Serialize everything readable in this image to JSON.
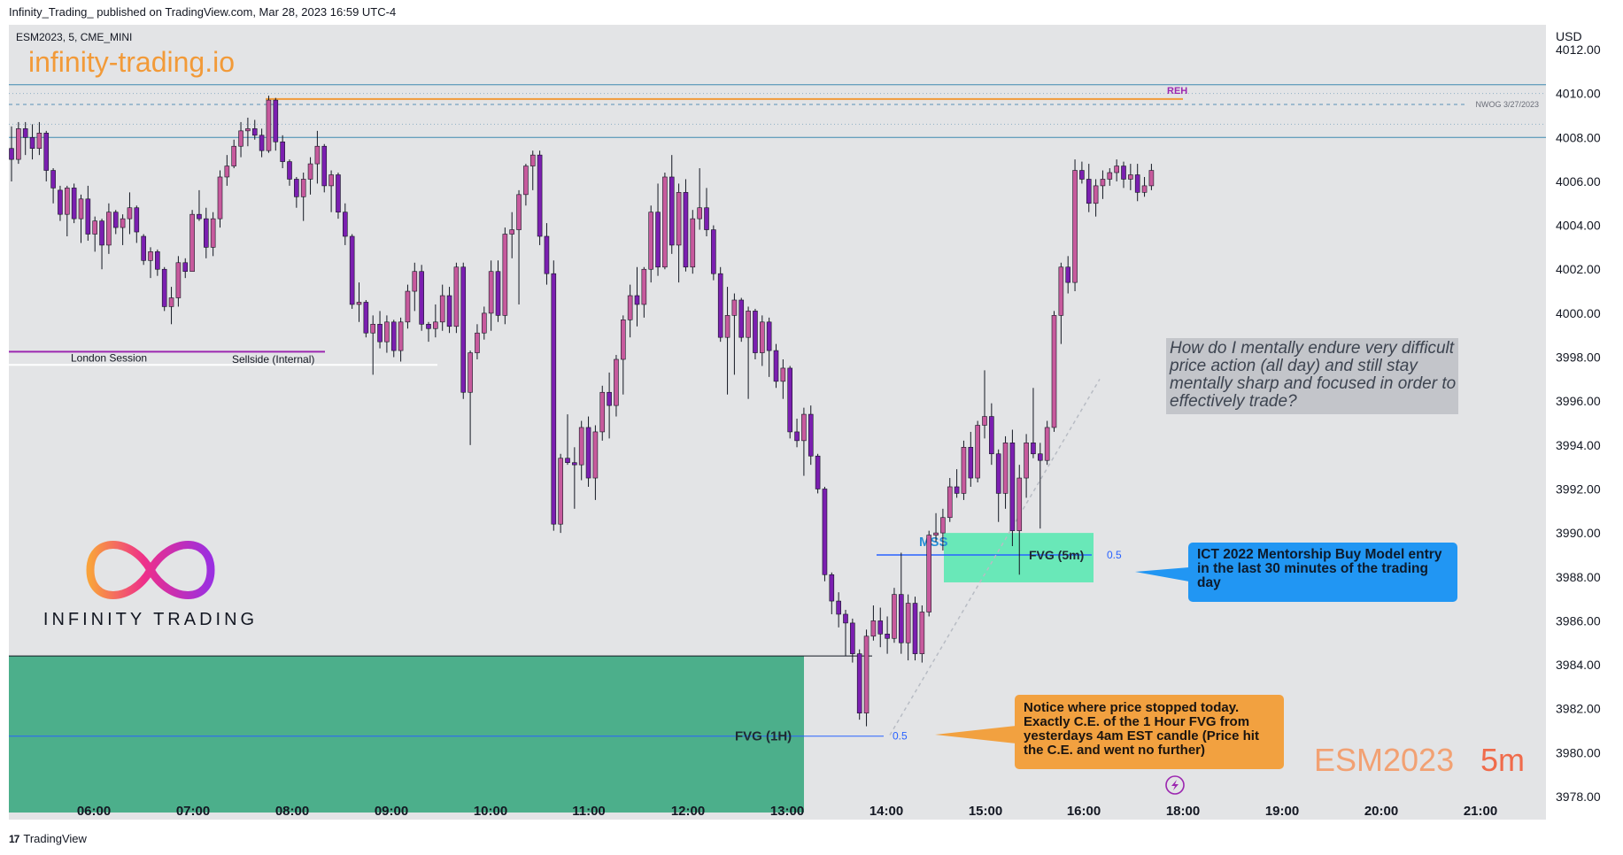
{
  "header": {
    "publish_line": "Infinity_Trading_ published on TradingView.com, Mar 28, 2023 16:59 UTC-4"
  },
  "footer": {
    "brand": "TradingView"
  },
  "chart": {
    "symbol_line": "ESM2023, 5, CME_MINI",
    "currency": "USD",
    "brand_url": "infinity-trading.io",
    "logo_text": "INFINITY TRADING",
    "watermark_symbol": "ESM2023",
    "watermark_interval": "5m"
  },
  "colors": {
    "background": "#e3e4e6",
    "bull_candle": "#c75a9d",
    "bear_candle": "#7b1fb0",
    "fvg_1h": "#4caf8b",
    "fvg_5m": "#69e8b8",
    "accent_orange": "#f29a38",
    "callout_blue": "#2196f3",
    "callout_orange": "#f2a140"
  },
  "annotations": {
    "reh": "REH",
    "nwog": "NWOG 3/27/2023",
    "london_session": "London Session",
    "sellside": "Sellside (Internal)",
    "mss": "MSS",
    "fvg_5m": "FVG (5m)",
    "fvg_5m_ce": "0.5",
    "fvg_1h": "FVG (1H)",
    "fvg_1h_ce": "0.5",
    "question": "How do I mentally endure very difficult price action (all day) and still stay mentally sharp and focused in order to effectively trade?",
    "ict_note": "ICT 2022 Mentorship Buy Model entry in the last 30 minutes of the trading day",
    "notice_note": "Notice where price stopped today. Exactly C.E. of the 1 Hour FVG from yesterdays 4am EST candle (Price hit the C.E. and went no further)"
  },
  "chart_data": {
    "type": "candlestick",
    "symbol": "ESM2023",
    "interval": "5m",
    "ylabel": "USD",
    "ylim": [
      3978,
      4012
    ],
    "y_ticks": [
      "3978.00",
      "3980.00",
      "3982.00",
      "3984.00",
      "3986.00",
      "3988.00",
      "3990.00",
      "3992.00",
      "3994.00",
      "3996.00",
      "3998.00",
      "4000.00",
      "4002.00",
      "4004.00",
      "4006.00",
      "4008.00",
      "4010.00",
      "4012.00"
    ],
    "x_ticks": [
      "06:00",
      "07:00",
      "08:00",
      "09:00",
      "10:00",
      "11:00",
      "12:00",
      "13:00",
      "14:00",
      "15:00",
      "16:00",
      "18:00",
      "19:00",
      "20:00",
      "21:00"
    ],
    "levels": {
      "reh": 4009.75,
      "nwog_top": 4010.4,
      "nwog_mid": 4009.5,
      "nwog_bottom": 4008,
      "sellside": 3997.75,
      "fvg_5m_top": 3990,
      "fvg_5m_bottom": 3987.75,
      "fvg_5m_ce": 3989,
      "fvg_1h_top": 3984.4,
      "fvg_1h_ce": 3980.75
    },
    "candles": [
      [
        4007.5,
        4008.5,
        4006,
        4007
      ],
      [
        4007,
        4008.7,
        4006.8,
        4008.4
      ],
      [
        4008.4,
        4008.7,
        4007.2,
        4008
      ],
      [
        4008,
        4008.6,
        4007,
        4007.5
      ],
      [
        4007.5,
        4008.7,
        4007.2,
        4008.2
      ],
      [
        4008.2,
        4008.3,
        4006,
        4006.5
      ],
      [
        4006.5,
        4006.6,
        4005,
        4005.7
      ],
      [
        4005.6,
        4005.8,
        4004.2,
        4004.5
      ],
      [
        4004.5,
        4005.8,
        4003.5,
        4005.7
      ],
      [
        4005.7,
        4005.9,
        4004.1,
        4004.3
      ],
      [
        4004.3,
        4005.4,
        4003.2,
        4005.2
      ],
      [
        4005.2,
        4005.8,
        4003.3,
        4003.6
      ],
      [
        4003.6,
        4004.4,
        4002.8,
        4004.2
      ],
      [
        4004.2,
        4004.3,
        4002,
        4003.1
      ],
      [
        4003.1,
        4005,
        4002.7,
        4004.6
      ],
      [
        4004.6,
        4004.7,
        4003.6,
        4003.9
      ],
      [
        4003.9,
        4004.5,
        4003.1,
        4004.3
      ],
      [
        4004.3,
        4005.5,
        4003.6,
        4004.8
      ],
      [
        4004.8,
        4004.9,
        4003.2,
        4003.7
      ],
      [
        4003.5,
        4003.6,
        4002.2,
        4002.4
      ],
      [
        4002.4,
        4003,
        4001.6,
        4002.8
      ],
      [
        4002.8,
        4002.9,
        4001.7,
        4002
      ],
      [
        4002,
        4002.1,
        4000.1,
        4000.3
      ],
      [
        4000.3,
        4001.2,
        3999.5,
        4000.7
      ],
      [
        4000.7,
        4002.6,
        4000.3,
        4002.3
      ],
      [
        4002.3,
        4002.5,
        4001.6,
        4001.9
      ],
      [
        4001.9,
        4004.7,
        4001.9,
        4004.5
      ],
      [
        4004.5,
        4005.6,
        4004.2,
        4004.3
      ],
      [
        4004.3,
        4004.8,
        4002.5,
        4003
      ],
      [
        4003,
        4004.6,
        4002.6,
        4004.3
      ],
      [
        4004.3,
        4006.5,
        4003.9,
        4006.2
      ],
      [
        4006.2,
        4007.2,
        4005.8,
        4006.7
      ],
      [
        4006.7,
        4007.9,
        4006.6,
        4007.6
      ],
      [
        4007.6,
        4008.7,
        4007.1,
        4008.3
      ],
      [
        4008.3,
        4008.9,
        4007.6,
        4008.4
      ],
      [
        4008.4,
        4008.8,
        4007.9,
        4008.1
      ],
      [
        4008.1,
        4008.4,
        4007.1,
        4007.4
      ],
      [
        4007.4,
        4009.9,
        4007.3,
        4009.7
      ],
      [
        4009.7,
        4009.8,
        4007.4,
        4007.8
      ],
      [
        4007.8,
        4008.1,
        4006.6,
        4006.9
      ],
      [
        4006.9,
        4007,
        4005.8,
        4006.1
      ],
      [
        4006.1,
        4006.2,
        4004.8,
        4005.3
      ],
      [
        4005.3,
        4006.4,
        4004.2,
        4006.1
      ],
      [
        4006.1,
        4007.1,
        4005.4,
        4006.8
      ],
      [
        4006.8,
        4008.3,
        4005.9,
        4007.6
      ],
      [
        4007.6,
        4007.7,
        4005.5,
        4005.8
      ],
      [
        4005.8,
        4006.5,
        4004.6,
        4006.3
      ],
      [
        4006.3,
        4006.4,
        4004.3,
        4004.6
      ],
      [
        4004.6,
        4005,
        4003.1,
        4003.5
      ],
      [
        4003.5,
        4003.6,
        4000.2,
        4000.4
      ],
      [
        4000.4,
        4001.4,
        3999.6,
        4000.5
      ],
      [
        4000.5,
        4000.6,
        3998.9,
        3999.1
      ],
      [
        3999.1,
        3999.9,
        3997.2,
        3999.5
      ],
      [
        3999.5,
        4000.1,
        3998.4,
        3998.7
      ],
      [
        3998.7,
        3999.9,
        3998.2,
        3999.6
      ],
      [
        3999.6,
        3999.7,
        3998,
        3998.3
      ],
      [
        3998.3,
        3999.8,
        3997.8,
        3999.6
      ],
      [
        3999.6,
        4001.3,
        3999.3,
        4001
      ],
      [
        4001,
        4002.3,
        4000.1,
        4001.9
      ],
      [
        4001.9,
        4002.2,
        3999.2,
        3999.5
      ],
      [
        3999.5,
        3999.6,
        3998.7,
        3999.3
      ],
      [
        3999.3,
        4000.4,
        3998.9,
        3999.6
      ],
      [
        3999.6,
        4001.3,
        3999.2,
        4000.8
      ],
      [
        4000.8,
        4001.2,
        3999.1,
        3999.4
      ],
      [
        3999.4,
        4002.3,
        3999.1,
        4002.1
      ],
      [
        4002.1,
        4002.3,
        3996.1,
        3996.4
      ],
      [
        3996.4,
        3998.3,
        3994,
        3998.2
      ],
      [
        3998.2,
        3999.5,
        3997.9,
        3999.1
      ],
      [
        3999.1,
        4000.3,
        3998.8,
        4000
      ],
      [
        4000,
        4002.4,
        3999.2,
        4001.9
      ],
      [
        4001.9,
        4002.4,
        3999.6,
        3999.9
      ],
      [
        3999.9,
        4003.9,
        3999.5,
        4003.6
      ],
      [
        4003.6,
        4004.6,
        4002.5,
        4003.8
      ],
      [
        4003.8,
        4005.6,
        4000.4,
        4005.4
      ],
      [
        4005.4,
        4006.8,
        4004.9,
        4006.7
      ],
      [
        4006.7,
        4007.4,
        4005.6,
        4007.2
      ],
      [
        4007.2,
        4007.4,
        4003.1,
        4003.5
      ],
      [
        4003.5,
        4004.1,
        4001.3,
        4001.8
      ],
      [
        4001.8,
        4002.4,
        3990.1,
        3990.4
      ],
      [
        3990.4,
        3993.6,
        3990,
        3993.4
      ],
      [
        3993.4,
        3995.4,
        3993.1,
        3993.2
      ],
      [
        3993.2,
        3993.9,
        3991.1,
        3993.1
      ],
      [
        3993.1,
        3995.1,
        3992.4,
        3994.8
      ],
      [
        3994.8,
        3995.3,
        3992.1,
        3992.5
      ],
      [
        3992.5,
        3994.9,
        3991.5,
        3994.6
      ],
      [
        3994.6,
        3996.7,
        3994.2,
        3996.4
      ],
      [
        3996.4,
        3997.3,
        3994.3,
        3995.8
      ],
      [
        3995.8,
        3998.1,
        3995.3,
        3997.9
      ],
      [
        3997.9,
        3999.9,
        3996.3,
        3999.7
      ],
      [
        3999.7,
        4001.3,
        3998.9,
        4000.8
      ],
      [
        4000.8,
        4002.1,
        3999.4,
        4000.4
      ],
      [
        4000.4,
        4002.1,
        3999.8,
        4002
      ],
      [
        4002,
        4004.9,
        4001.4,
        4004.6
      ],
      [
        4004.6,
        4005.9,
        4001.7,
        4002.1
      ],
      [
        4002.1,
        4006.4,
        4002,
        4006.2
      ],
      [
        4006.2,
        4007.2,
        4002.7,
        4003.1
      ],
      [
        4003.1,
        4005.9,
        4001.4,
        4005.5
      ],
      [
        4005.5,
        4006.1,
        4001.9,
        4002.1
      ],
      [
        4002.1,
        4004.7,
        4001.8,
        4004.3
      ],
      [
        4004.3,
        4006.6,
        4003.8,
        4004.8
      ],
      [
        4004.8,
        4005.7,
        4003.5,
        4003.8
      ],
      [
        4003.8,
        4004,
        4001.5,
        4001.8
      ],
      [
        4001.8,
        4002.1,
        3998.7,
        3998.9
      ],
      [
        3998.9,
        4001.2,
        3996.3,
        3999.9
      ],
      [
        3999.9,
        4000.9,
        3997.2,
        4000.6
      ],
      [
        4000.6,
        4000.7,
        3998.7,
        3998.9
      ],
      [
        3998.9,
        4000.3,
        3996.1,
        4000.1
      ],
      [
        4000.1,
        4000.2,
        3997.9,
        3998.2
      ],
      [
        3998.2,
        3999.9,
        3997.6,
        3999.6
      ],
      [
        3999.6,
        3999.8,
        3997.1,
        3998.3
      ],
      [
        3998.3,
        3998.6,
        3996.6,
        3996.9
      ],
      [
        3996.9,
        3997.9,
        3996.1,
        3997.5
      ],
      [
        3997.5,
        3997.6,
        3994.3,
        3994.6
      ],
      [
        3994.6,
        3995.2,
        3993.9,
        3994.2
      ],
      [
        3994.2,
        3995.7,
        3992.6,
        3995.4
      ],
      [
        3995.4,
        3995.8,
        3993.1,
        3993.5
      ],
      [
        3993.5,
        3993.6,
        3991.8,
        3992
      ],
      [
        3992,
        3992.1,
        3987.8,
        3988.1
      ],
      [
        3988.1,
        3988.2,
        3986.3,
        3986.9
      ],
      [
        3986.9,
        3987.3,
        3985.7,
        3986.3
      ],
      [
        3986.3,
        3986.5,
        3984.4,
        3985.9
      ],
      [
        3985.9,
        3986.1,
        3984.1,
        3984.5
      ],
      [
        3984.5,
        3984.7,
        3981.5,
        3981.8
      ],
      [
        3981.8,
        3985.6,
        3981.2,
        3985.3
      ],
      [
        3985.3,
        3986.7,
        3985.1,
        3986
      ],
      [
        3986,
        3986.6,
        3984.8,
        3985.4
      ],
      [
        3985.4,
        3986.2,
        3984.5,
        3985.2
      ],
      [
        3985.2,
        3987.5,
        3985,
        3987.2
      ],
      [
        3987.2,
        3989.1,
        3984.5,
        3985
      ],
      [
        3985,
        3987.2,
        3984.2,
        3986.8
      ],
      [
        3986.8,
        3987.1,
        3984.2,
        3984.5
      ],
      [
        3984.5,
        3986.7,
        3984.1,
        3986.4
      ],
      [
        3986.4,
        3990.1,
        3986.2,
        3989.9
      ],
      [
        3989.9,
        3990.9,
        3989.6,
        3990
      ],
      [
        3990,
        3991.1,
        3989.2,
        3990.7
      ],
      [
        3990.7,
        3992.5,
        3990.5,
        3992.1
      ],
      [
        3992.1,
        3992.9,
        3991.6,
        3991.8
      ],
      [
        3991.8,
        3994.2,
        3991.5,
        3993.9
      ],
      [
        3993.9,
        3994.6,
        3992.1,
        3992.5
      ],
      [
        3992.5,
        3995.1,
        3992.3,
        3994.9
      ],
      [
        3994.9,
        3997.4,
        3994.3,
        3995.3
      ],
      [
        3995.3,
        3995.9,
        3993.1,
        3993.6
      ],
      [
        3993.6,
        3993.8,
        3990.5,
        3991.8
      ],
      [
        3991.8,
        3994.4,
        3991.1,
        3994.1
      ],
      [
        3994.1,
        3994.7,
        3989.4,
        3990.1
      ],
      [
        3990.1,
        3993.1,
        3988.1,
        3992.5
      ],
      [
        3992.5,
        3994.5,
        3991.6,
        3994.1
      ],
      [
        3994.1,
        3996.6,
        3993.4,
        3993.6
      ],
      [
        3993.6,
        3994.1,
        3990.2,
        3993.3
      ],
      [
        3993.3,
        3995.1,
        3993.1,
        3994.8
      ],
      [
        3994.8,
        4000.1,
        3994.6,
        3999.9
      ],
      [
        3999.9,
        4002.3,
        3998.6,
        4002.1
      ],
      [
        4002.1,
        4002.6,
        4000.9,
        4001.4
      ],
      [
        4001.4,
        4007,
        4001,
        4006.5
      ],
      [
        4006.5,
        4006.9,
        4005.9,
        4006.1
      ],
      [
        4006.1,
        4006.8,
        4004.6,
        4005
      ],
      [
        4005,
        4006.1,
        4004.4,
        4005.8
      ],
      [
        4005.8,
        4006.5,
        4005.2,
        4006.1
      ],
      [
        4006.1,
        4006.6,
        4005.8,
        4006.4
      ],
      [
        4006.4,
        4007,
        4006,
        4006.7
      ],
      [
        4006.7,
        4006.9,
        4005.7,
        4006.1
      ],
      [
        4006.1,
        4006.8,
        4005.6,
        4006.3
      ],
      [
        4006.3,
        4006.8,
        4005.1,
        4005.5
      ],
      [
        4005.5,
        4006.2,
        4005.3,
        4005.8
      ],
      [
        4005.8,
        4006.8,
        4005.6,
        4006.5
      ]
    ]
  }
}
